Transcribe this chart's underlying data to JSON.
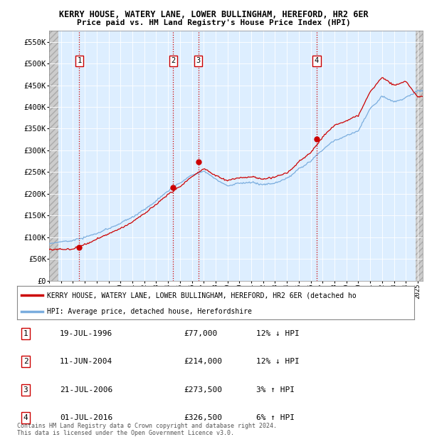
{
  "title1": "KERRY HOUSE, WATERY LANE, LOWER BULLINGHAM, HEREFORD, HR2 6ER",
  "title2": "Price paid vs. HM Land Registry's House Price Index (HPI)",
  "ylim": [
    0,
    575000
  ],
  "yticks": [
    0,
    50000,
    100000,
    150000,
    200000,
    250000,
    300000,
    350000,
    400000,
    450000,
    500000,
    550000
  ],
  "ytick_labels": [
    "£0",
    "£50K",
    "£100K",
    "£150K",
    "£200K",
    "£250K",
    "£300K",
    "£350K",
    "£400K",
    "£450K",
    "£500K",
    "£550K"
  ],
  "xlim_start": 1994.0,
  "xlim_end": 2025.42,
  "background_color": "#ddeeff",
  "grid_color": "#ffffff",
  "sale_dates": [
    1996.54,
    2004.44,
    2006.55,
    2016.5
  ],
  "sale_prices": [
    77000,
    214000,
    273500,
    326500
  ],
  "sale_labels": [
    "1",
    "2",
    "3",
    "4"
  ],
  "legend_line1": "KERRY HOUSE, WATERY LANE, LOWER BULLINGHAM, HEREFORD, HR2 6ER (detached ho",
  "legend_line2": "HPI: Average price, detached house, Herefordshire",
  "table_rows": [
    [
      "1",
      "19-JUL-1996",
      "£77,000",
      "12% ↓ HPI"
    ],
    [
      "2",
      "11-JUN-2004",
      "£214,000",
      "12% ↓ HPI"
    ],
    [
      "3",
      "21-JUL-2006",
      "£273,500",
      "3% ↑ HPI"
    ],
    [
      "4",
      "01-JUL-2016",
      "£326,500",
      "6% ↑ HPI"
    ]
  ],
  "footer": "Contains HM Land Registry data © Crown copyright and database right 2024.\nThis data is licensed under the Open Government Licence v3.0.",
  "hpi_color": "#7aadde",
  "price_color": "#cc0000",
  "hatch_left_end": 1994.75,
  "hatch_right_start": 2024.83
}
